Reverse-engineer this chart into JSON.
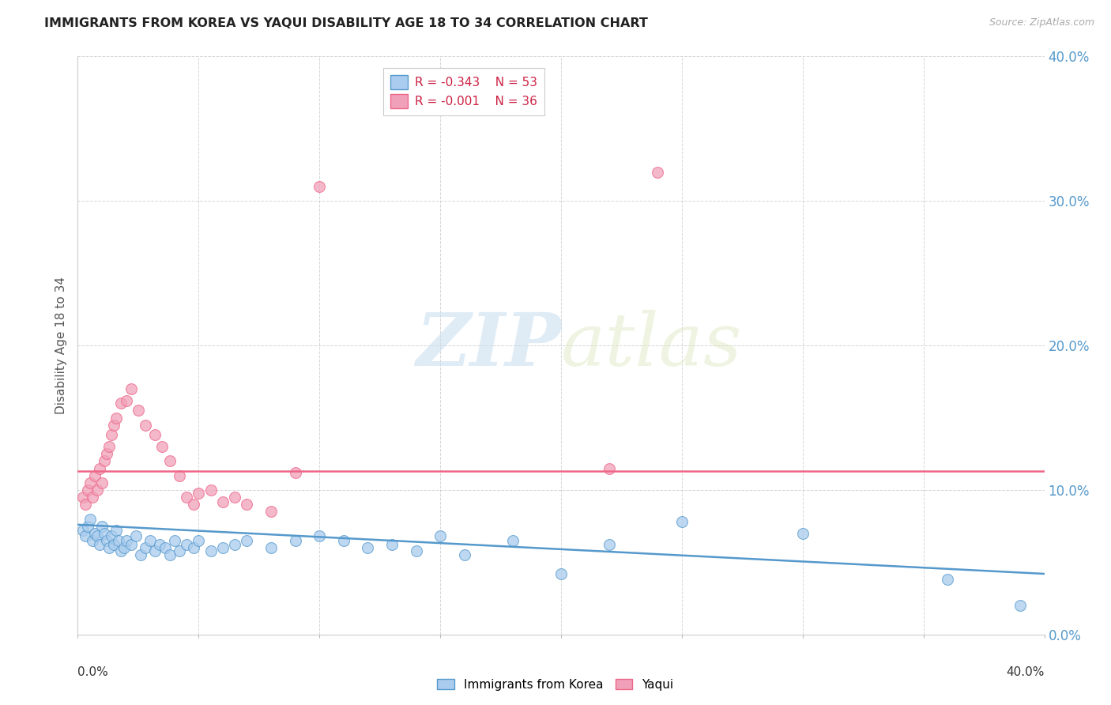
{
  "title": "IMMIGRANTS FROM KOREA VS YAQUI DISABILITY AGE 18 TO 34 CORRELATION CHART",
  "source": "Source: ZipAtlas.com",
  "ylabel": "Disability Age 18 to 34",
  "ytick_vals": [
    0.0,
    0.1,
    0.2,
    0.3,
    0.4
  ],
  "xlim": [
    0.0,
    0.4
  ],
  "ylim": [
    0.0,
    0.4
  ],
  "korea_color": "#aaccee",
  "yaqui_color": "#f0a0b8",
  "korea_line_color": "#5599cc",
  "yaqui_line_color": "#ee6688",
  "legend_korea_R": "-0.343",
  "legend_korea_N": "53",
  "legend_yaqui_R": "-0.001",
  "legend_yaqui_N": "36",
  "watermark_zip": "ZIP",
  "watermark_atlas": "atlas",
  "korea_scatter_x": [
    0.002,
    0.003,
    0.004,
    0.005,
    0.006,
    0.007,
    0.008,
    0.009,
    0.01,
    0.011,
    0.012,
    0.013,
    0.014,
    0.015,
    0.016,
    0.017,
    0.018,
    0.019,
    0.02,
    0.022,
    0.024,
    0.026,
    0.028,
    0.03,
    0.032,
    0.034,
    0.036,
    0.038,
    0.04,
    0.042,
    0.045,
    0.048,
    0.05,
    0.055,
    0.06,
    0.065,
    0.07,
    0.08,
    0.09,
    0.1,
    0.11,
    0.12,
    0.13,
    0.14,
    0.15,
    0.16,
    0.18,
    0.2,
    0.22,
    0.25,
    0.3,
    0.36,
    0.39
  ],
  "korea_scatter_y": [
    0.072,
    0.068,
    0.075,
    0.08,
    0.065,
    0.07,
    0.068,
    0.062,
    0.075,
    0.07,
    0.065,
    0.06,
    0.068,
    0.062,
    0.072,
    0.065,
    0.058,
    0.06,
    0.065,
    0.062,
    0.068,
    0.055,
    0.06,
    0.065,
    0.058,
    0.062,
    0.06,
    0.055,
    0.065,
    0.058,
    0.062,
    0.06,
    0.065,
    0.058,
    0.06,
    0.062,
    0.065,
    0.06,
    0.065,
    0.068,
    0.065,
    0.06,
    0.062,
    0.058,
    0.068,
    0.055,
    0.065,
    0.042,
    0.062,
    0.078,
    0.07,
    0.038,
    0.02
  ],
  "yaqui_scatter_x": [
    0.002,
    0.003,
    0.004,
    0.005,
    0.006,
    0.007,
    0.008,
    0.009,
    0.01,
    0.011,
    0.012,
    0.013,
    0.014,
    0.015,
    0.016,
    0.018,
    0.02,
    0.022,
    0.025,
    0.028,
    0.032,
    0.035,
    0.038,
    0.042,
    0.045,
    0.048,
    0.05,
    0.055,
    0.06,
    0.065,
    0.07,
    0.08,
    0.09,
    0.1,
    0.22,
    0.24
  ],
  "yaqui_scatter_y": [
    0.095,
    0.09,
    0.1,
    0.105,
    0.095,
    0.11,
    0.1,
    0.115,
    0.105,
    0.12,
    0.125,
    0.13,
    0.138,
    0.145,
    0.15,
    0.16,
    0.162,
    0.17,
    0.155,
    0.145,
    0.138,
    0.13,
    0.12,
    0.11,
    0.095,
    0.09,
    0.098,
    0.1,
    0.092,
    0.095,
    0.09,
    0.085,
    0.112,
    0.31,
    0.115,
    0.32
  ],
  "korea_trend_x": [
    0.0,
    0.4
  ],
  "korea_trend_y": [
    0.076,
    0.042
  ],
  "yaqui_trend_x": [
    0.0,
    0.4
  ],
  "yaqui_trend_y": [
    0.113,
    0.113
  ]
}
